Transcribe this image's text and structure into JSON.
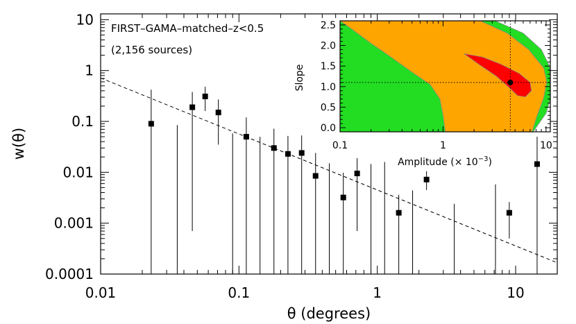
{
  "chart_data": [
    {
      "type": "scatter",
      "title": "",
      "annotation_lines": [
        "FIRST–GAMA–matched–z<0.5",
        "(2,156 sources)"
      ],
      "xlabel": "θ (degrees)",
      "ylabel": "w(θ)",
      "xscale": "log",
      "yscale": "log",
      "xlim": [
        0.01,
        20
      ],
      "ylim": [
        0.0001,
        13
      ],
      "xticks": [
        {
          "value": 0.01,
          "label": "0.01"
        },
        {
          "value": 0.1,
          "label": "0.1"
        },
        {
          "value": 1,
          "label": "1"
        },
        {
          "value": 10,
          "label": "10"
        }
      ],
      "yticks": [
        {
          "value": 0.0001,
          "label": "0.0001"
        },
        {
          "value": 0.001,
          "label": "0.001"
        },
        {
          "value": 0.01,
          "label": "0.01"
        },
        {
          "value": 0.1,
          "label": "0.1"
        },
        {
          "value": 1,
          "label": "1"
        },
        {
          "value": 10,
          "label": "10"
        }
      ],
      "fit_line": {
        "style": "dashed",
        "amplitude": 0.0045,
        "slope": 1.1
      },
      "points": [
        {
          "x": 0.0232,
          "y": 0.09,
          "lo": 0.0001,
          "hi": 0.42
        },
        {
          "x": 0.046,
          "y": 0.19,
          "lo": 0.0007,
          "hi": 0.38
        },
        {
          "x": 0.057,
          "y": 0.31,
          "lo": 0.16,
          "hi": 0.48
        },
        {
          "x": 0.071,
          "y": 0.15,
          "lo": 0.035,
          "hi": 0.27
        },
        {
          "x": 0.113,
          "y": 0.05,
          "lo": 0.0001,
          "hi": 0.12
        },
        {
          "x": 0.179,
          "y": 0.03,
          "lo": 0.0001,
          "hi": 0.072
        },
        {
          "x": 0.226,
          "y": 0.023,
          "lo": 0.0001,
          "hi": 0.052
        },
        {
          "x": 0.284,
          "y": 0.024,
          "lo": 0.0001,
          "hi": 0.053
        },
        {
          "x": 0.358,
          "y": 0.0085,
          "lo": 0.0001,
          "hi": 0.024
        },
        {
          "x": 0.568,
          "y": 0.0032,
          "lo": 0.0001,
          "hi": 0.0098
        },
        {
          "x": 0.715,
          "y": 0.0095,
          "lo": 0.0007,
          "hi": 0.019
        },
        {
          "x": 1.43,
          "y": 0.0016,
          "lo": 0.0001,
          "hi": 0.0036
        },
        {
          "x": 2.27,
          "y": 0.0072,
          "lo": 0.0045,
          "hi": 0.0105
        },
        {
          "x": 9.0,
          "y": 0.0016,
          "lo": 0.0005,
          "hi": 0.0026
        },
        {
          "x": 14.3,
          "y": 0.0145,
          "lo": 0.0001,
          "hi": 0.05
        }
      ],
      "upper_limits": [
        {
          "x": 0.0358,
          "hi": 0.085
        },
        {
          "x": 0.09,
          "hi": 0.058
        },
        {
          "x": 0.142,
          "hi": 0.05
        },
        {
          "x": 0.45,
          "hi": 0.015
        },
        {
          "x": 0.9,
          "hi": 0.0145
        },
        {
          "x": 1.13,
          "hi": 0.016
        },
        {
          "x": 1.8,
          "hi": 0.0044
        },
        {
          "x": 3.6,
          "hi": 0.0024
        },
        {
          "x": 7.15,
          "hi": 0.0058
        }
      ]
    },
    {
      "type": "contour",
      "xlabel": "Amplitude (× 10",
      "xlabel_exp": "−3",
      "xlabel_close": ")",
      "ylabel": "Slope",
      "xscale": "log",
      "xlim": [
        0.1,
        11
      ],
      "ylim": [
        -0.1,
        2.6
      ],
      "xticks": [
        {
          "value": 0.1,
          "label": "0.1"
        },
        {
          "value": 1,
          "label": "1"
        },
        {
          "value": 10,
          "label": "10"
        }
      ],
      "yticks": [
        {
          "value": 0.0,
          "label": "0.0"
        },
        {
          "value": 0.5,
          "label": "0.5"
        },
        {
          "value": 1.0,
          "label": "1.0"
        },
        {
          "value": 1.5,
          "label": "1.5"
        },
        {
          "value": 2.0,
          "label": "2.0"
        },
        {
          "value": 2.5,
          "label": "2.5"
        }
      ],
      "best_fit": {
        "amplitude": 4.5,
        "slope": 1.1
      },
      "regions": [
        {
          "level": "3sigma",
          "color": "#22dd22",
          "boundary": [
            [
              0.1,
              2.6
            ],
            [
              3.2,
              2.6
            ],
            [
              6,
              2.3
            ],
            [
              9,
              1.9
            ],
            [
              10.8,
              1.5
            ],
            [
              11,
              1.2
            ],
            [
              11,
              0.7
            ],
            [
              10,
              0.35
            ],
            [
              8.5,
              0.1
            ],
            [
              7.5,
              -0.1
            ],
            [
              0.1,
              -0.1
            ]
          ]
        },
        {
          "level": "2sigma",
          "color": "#ffa500",
          "boundary": [
            [
              0.1,
              2.6
            ],
            [
              2.3,
              2.6
            ],
            [
              4.2,
              2.3
            ],
            [
              6.8,
              1.9
            ],
            [
              9.5,
              1.45
            ],
            [
              10.2,
              1.1
            ],
            [
              9.4,
              0.7
            ],
            [
              8.2,
              0.3
            ],
            [
              7.3,
              -0.1
            ],
            [
              1.05,
              -0.1
            ],
            [
              1.0,
              0.3
            ],
            [
              0.93,
              0.7
            ],
            [
              0.75,
              1.05
            ],
            [
              0.5,
              1.35
            ],
            [
              0.3,
              1.75
            ],
            [
              0.2,
              2.05
            ],
            [
              0.13,
              2.4
            ],
            [
              0.1,
              2.6
            ]
          ]
        },
        {
          "level": "1sigma",
          "color": "#ff0000",
          "boundary": [
            [
              1.6,
              1.8
            ],
            [
              2.4,
              1.72
            ],
            [
              3.6,
              1.55
            ],
            [
              5.5,
              1.32
            ],
            [
              7,
              1.1
            ],
            [
              7.2,
              0.9
            ],
            [
              6.3,
              0.75
            ],
            [
              5.3,
              0.78
            ],
            [
              4.5,
              0.95
            ],
            [
              3.3,
              1.25
            ],
            [
              2.2,
              1.55
            ],
            [
              1.6,
              1.8
            ]
          ]
        }
      ]
    }
  ]
}
